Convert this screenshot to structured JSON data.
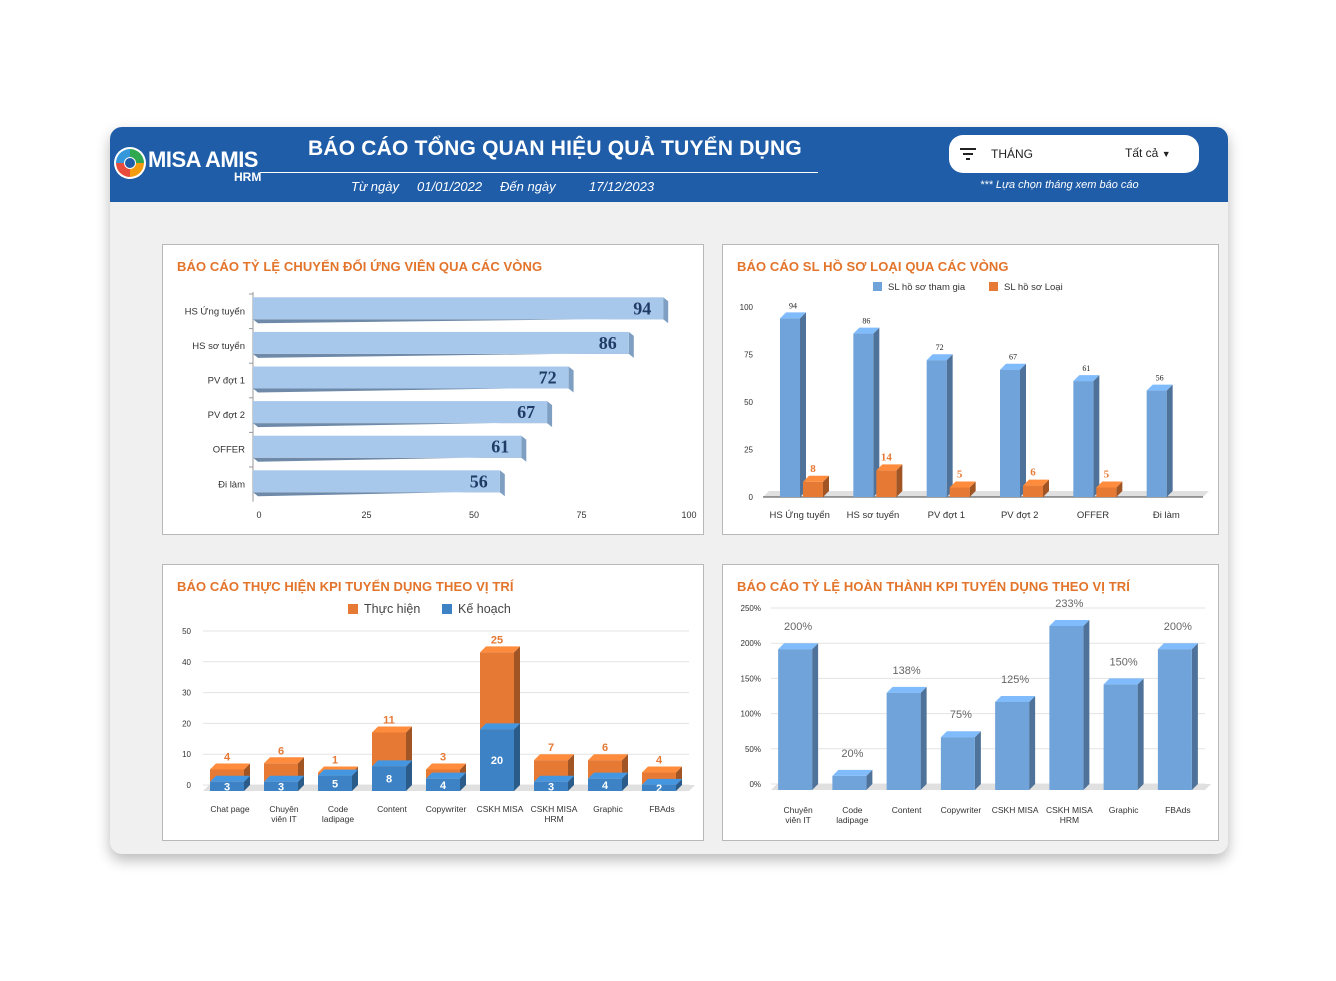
{
  "header": {
    "logo_text": "MISA AMIS",
    "logo_sub": "HRM",
    "title": "BÁO CÁO TỔNG QUAN HIỆU QUẢ TUYỂN DỤNG",
    "from_label": "Từ ngày",
    "from_value": "01/01/2022",
    "to_label": "Đến ngày",
    "to_value": "17/12/2023"
  },
  "filter": {
    "label": "THÁNG",
    "value": "Tất cả",
    "note": "*** Lựa chọn tháng xem báo cáo"
  },
  "colors": {
    "header_bg": "#1f5da8",
    "title_orange": "#e2742b",
    "bar_light_blue": "#a8c8eb",
    "bar_blue": "#6fa3da",
    "stack_blue": "#3c82c4",
    "stack_orange": "#e67a35"
  },
  "chart_data": [
    {
      "type": "bar",
      "orientation": "horizontal",
      "title": "BÁO CÁO TỶ LỆ CHUYỂN ĐỔI ỨNG VIÊN QUA CÁC VÒNG",
      "categories": [
        "HS Ứng tuyển",
        "HS sơ tuyển",
        "PV đợt 1",
        "PV đợt 2",
        "OFFER",
        "Đi làm"
      ],
      "values": [
        94,
        86,
        72,
        67,
        61,
        56
      ],
      "xlim": [
        0,
        100
      ],
      "xticks": [
        "0",
        "25",
        "50",
        "75",
        "100"
      ]
    },
    {
      "type": "bar",
      "title": "BÁO CÁO SL HỒ SƠ LOẠI QUA CÁC VÒNG",
      "categories": [
        "HS Ứng tuyển",
        "HS sơ tuyển",
        "PV đợt 1",
        "PV đợt 2",
        "OFFER",
        "Đi làm"
      ],
      "series": [
        {
          "name": "SL hồ sơ tham gia",
          "values": [
            94,
            86,
            72,
            67,
            61,
            56
          ]
        },
        {
          "name": "SL hồ sơ Loại",
          "values": [
            8,
            14,
            5,
            6,
            5,
            null
          ]
        }
      ],
      "ylim": [
        0,
        100
      ],
      "yticks": [
        "0",
        "25",
        "50",
        "75",
        "100"
      ],
      "legend": "top"
    },
    {
      "type": "bar",
      "stacked": true,
      "title": "BÁO CÁO THỰC HIỆN KPI TUYỂN DỤNG THEO VỊ TRÍ",
      "categories": [
        "Chat page",
        "Chuyên viên IT",
        "Code ladipage",
        "Content",
        "Copywriter",
        "CSKH MISA",
        "CSKH MISA HRM",
        "Graphic",
        "FBAds"
      ],
      "category_lines": [
        [
          "Chat page"
        ],
        [
          "Chuyên",
          "viên IT"
        ],
        [
          "Code",
          "ladipage"
        ],
        [
          "Content"
        ],
        [
          "Copywriter"
        ],
        [
          "CSKH MISA"
        ],
        [
          "CSKH MISA",
          "HRM"
        ],
        [
          "Graphic"
        ],
        [
          "FBAds"
        ]
      ],
      "series": [
        {
          "name": "Kế hoạch",
          "values": [
            3,
            3,
            5,
            8,
            4,
            20,
            3,
            4,
            2
          ]
        },
        {
          "name": "Thực hiện",
          "values": [
            4,
            6,
            1,
            11,
            3,
            25,
            7,
            6,
            4
          ]
        }
      ],
      "ylim": [
        0,
        50
      ],
      "yticks": [
        "0",
        "10",
        "20",
        "30",
        "40",
        "50"
      ],
      "legend": "top"
    },
    {
      "type": "bar",
      "title": "BÁO CÁO TỶ LỆ HOÀN THÀNH KPI TUYỂN DỤNG THEO VỊ TRÍ",
      "categories": [
        "Chuyên viên IT",
        "Code ladipage",
        "Content",
        "Copywriter",
        "CSKH MISA",
        "CSKH MISA HRM",
        "Graphic",
        "FBAds"
      ],
      "category_lines": [
        [
          "Chuyên",
          "viên IT"
        ],
        [
          "Code",
          "ladipage"
        ],
        [
          "Content"
        ],
        [
          "Copywriter"
        ],
        [
          "CSKH MISA"
        ],
        [
          "CSKH MISA",
          "HRM"
        ],
        [
          "Graphic"
        ],
        [
          "FBAds"
        ]
      ],
      "values": [
        200,
        20,
        138,
        75,
        125,
        233,
        150,
        200
      ],
      "value_labels": [
        "200%",
        "20%",
        "138%",
        "75%",
        "125%",
        "233%",
        "150%",
        "200%"
      ],
      "ylim": [
        0,
        250
      ],
      "yticks": [
        "0%",
        "50%",
        "100%",
        "150%",
        "200%",
        "250%"
      ]
    }
  ]
}
